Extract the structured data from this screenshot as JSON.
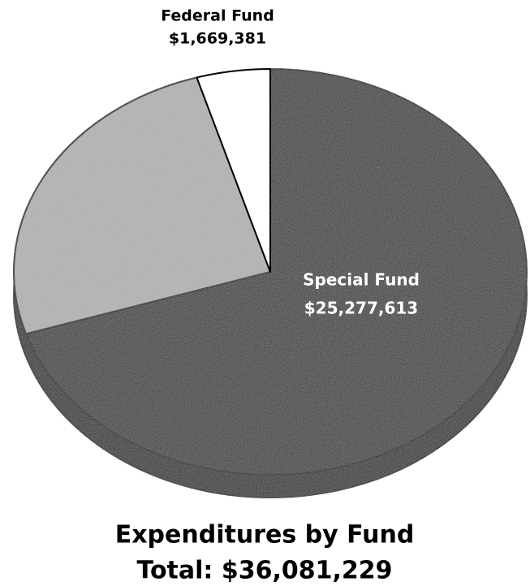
{
  "chart_data": {
    "type": "pie",
    "title": "Expenditures by Fund",
    "subtitle": "Total: $36,081,229",
    "categories": [
      "Special Fund",
      null,
      "Federal Fund"
    ],
    "values": [
      25277613,
      9134235,
      1669381
    ],
    "value_labels": [
      "$25,277,613",
      null,
      "$1,669,381"
    ],
    "colors": [
      "#3a3a3a",
      "#b4b4b4",
      "#ffffff"
    ]
  }
}
